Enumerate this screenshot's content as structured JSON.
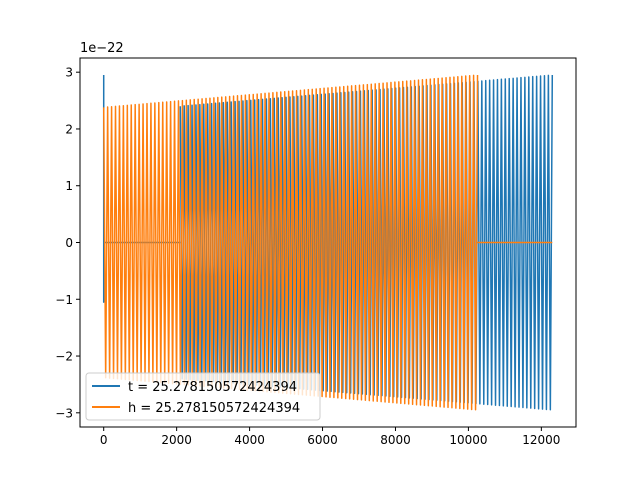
{
  "chart_data": {
    "type": "line",
    "title": "",
    "xlabel": "",
    "ylabel": "",
    "offset_text": "1e−22",
    "xlim": [
      -650,
      12950
    ],
    "ylim": [
      -3.25,
      3.25
    ],
    "xticks": [
      0,
      2000,
      4000,
      6000,
      8000,
      10000,
      12000
    ],
    "xtick_labels": [
      "0",
      "2000",
      "4000",
      "6000",
      "8000",
      "10000",
      "12000"
    ],
    "yticks": [
      -3,
      -2,
      -1,
      0,
      1,
      2,
      3
    ],
    "ytick_labels": [
      "−3",
      "−2",
      "−1",
      "0",
      "1",
      "2",
      "3"
    ],
    "grid": false,
    "legend_position": "lower-left",
    "series": [
      {
        "name": "t = 25.278150572424394",
        "color": "#1f77b4",
        "segments": [
          {
            "kind": "spike",
            "x": 0,
            "ymin": -1.05,
            "ymax": 2.95
          },
          {
            "kind": "flat",
            "x0": 0,
            "x1": 2100,
            "y": 0
          },
          {
            "kind": "oscillation",
            "x0": 2100,
            "x1": 12300,
            "amp0": 2.4,
            "amp1": 2.95,
            "cycles": 95
          }
        ]
      },
      {
        "name": "h = 25.278150572424394",
        "color": "#ff7f0e",
        "segments": [
          {
            "kind": "oscillation",
            "x0": 0,
            "x1": 10250,
            "amp0": 2.38,
            "amp1": 2.95,
            "cycles": 95
          },
          {
            "kind": "flat",
            "x0": 10250,
            "x1": 12300,
            "y": 0
          }
        ]
      }
    ]
  }
}
